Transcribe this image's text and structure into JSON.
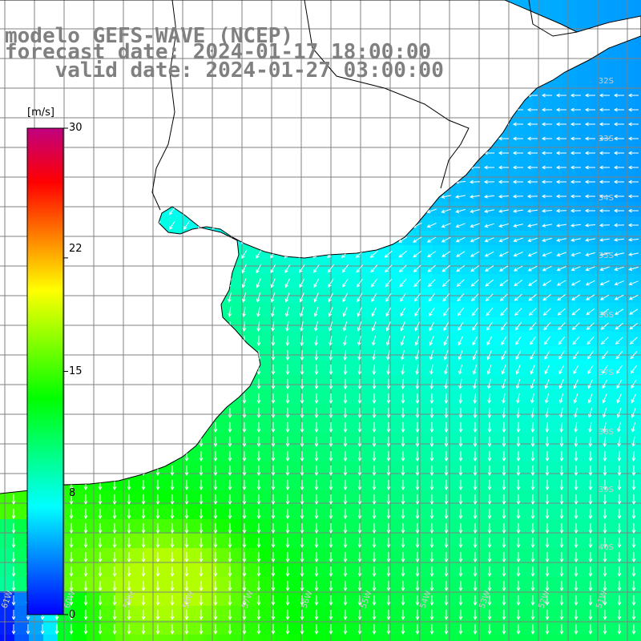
{
  "title": {
    "line1": "modelo GEFS-WAVE (NCEP)",
    "line2": "forecast date: 2024-01-17 18:00:00",
    "line3": "    valid date: 2024-01-27 03:00:00"
  },
  "colorbar": {
    "unit": "[m/s]",
    "ticks": [
      "30",
      "22",
      "15",
      "8",
      "0"
    ],
    "tick_values": [
      30,
      22,
      15,
      8,
      0
    ],
    "min": 0,
    "max": 30,
    "colors": [
      "#0000ff",
      "#0080ff",
      "#00ffff",
      "#00ff80",
      "#00ff00",
      "#80ff00",
      "#ffff00",
      "#ff8000",
      "#ff0000",
      "#c00080"
    ]
  },
  "map": {
    "lat_labels": [
      "32S",
      "33S",
      "34S",
      "35S",
      "36S",
      "37S",
      "38S",
      "39S",
      "40S"
    ],
    "lon_labels": [
      "61W",
      "60W",
      "59W",
      "58W",
      "57W",
      "56W",
      "55W",
      "54W",
      "53W",
      "52W",
      "51W"
    ],
    "land_color": "#ffffff",
    "grid_color": "#808080",
    "coast_color": "#000000",
    "arrow_color": "#ffffff"
  }
}
